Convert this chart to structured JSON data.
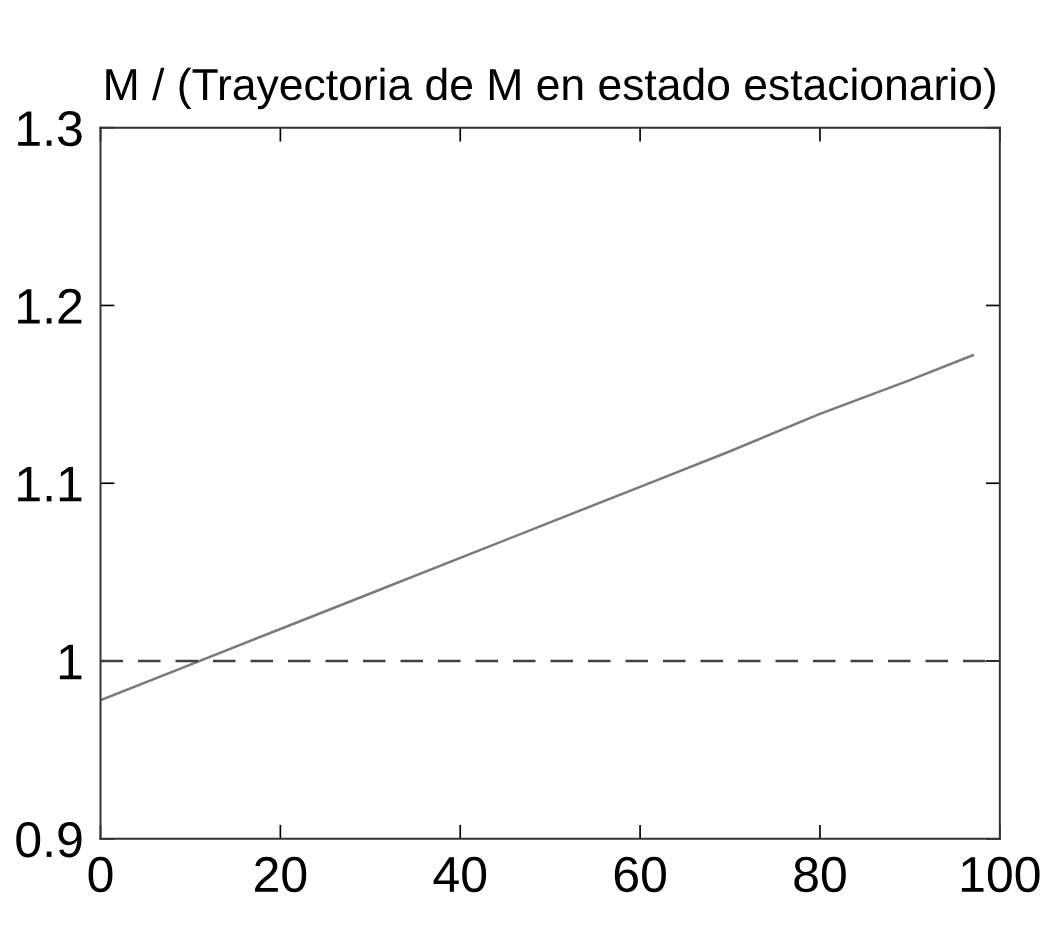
{
  "chart_data": {
    "type": "line",
    "title": "M / (Trayectoria de M en estado estacionario)",
    "x": [
      0,
      10,
      20,
      30,
      40,
      50,
      60,
      70,
      80,
      90,
      97
    ],
    "series": [
      {
        "color": "#7a7a7a",
        "values": [
          0.978,
          0.998,
          1.018,
          1.038,
          1.058,
          1.078,
          1.098,
          1.118,
          1.139,
          1.158,
          1.172
        ]
      }
    ],
    "xlim": [
      0,
      100
    ],
    "xticks": [
      0,
      20,
      40,
      60,
      80,
      100
    ],
    "ylim": [
      0.9,
      1.3
    ],
    "yticks": [
      0.9,
      1,
      1.1,
      1.2,
      1.3
    ],
    "ref_lines": [
      {
        "axis": "y",
        "value": 1,
        "color": "#404040",
        "line_style": "dashed"
      }
    ],
    "grid": false,
    "marker": "none",
    "line_style": "solid"
  }
}
